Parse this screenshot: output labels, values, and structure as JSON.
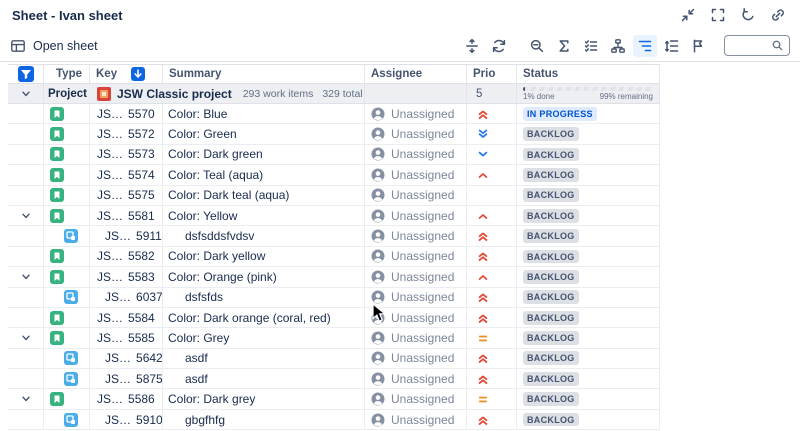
{
  "window": {
    "title": "Sheet - Ivan sheet",
    "buttons": [
      "collapse",
      "fullscreen",
      "undo",
      "link"
    ]
  },
  "toolbar": {
    "open_sheet": "Open sheet",
    "buttons": [
      "expand-rows",
      "refresh",
      "search-issues",
      "sum",
      "checklist",
      "group-by",
      "hierarchy",
      "row-height",
      "flag"
    ],
    "active_button": "hierarchy",
    "search_value": ""
  },
  "table": {
    "headers": {
      "type": "Type",
      "key": "Key",
      "summary": "Summary",
      "assignee": "Assignee",
      "prio": "Prio",
      "status": "Status"
    },
    "sort": {
      "column": "Key",
      "direction": "desc"
    },
    "project_row": {
      "label": "Project",
      "name": "JSW Classic project",
      "work_items": "293 work items",
      "total": "329 total",
      "prio": "5",
      "progress": {
        "done_pct": 1,
        "done_label": "1% done",
        "remaining_label": "99% remaining"
      }
    },
    "rows": [
      {
        "type": "story",
        "key_prefix": "JS…",
        "key_number": "5570",
        "summary": "Color: Blue",
        "assignee": "Unassigned",
        "priority": "highest",
        "status": "IN PROGRESS",
        "status_style": "inprogress",
        "expandable": false,
        "indent": false
      },
      {
        "type": "story",
        "key_prefix": "JS…",
        "key_number": "5572",
        "summary": "Color: Green",
        "assignee": "Unassigned",
        "priority": "lowest",
        "status": "BACKLOG",
        "status_style": "backlog",
        "expandable": false,
        "indent": false
      },
      {
        "type": "story",
        "key_prefix": "JS…",
        "key_number": "5573",
        "summary": "Color: Dark green",
        "assignee": "Unassigned",
        "priority": "low",
        "status": "BACKLOG",
        "status_style": "backlog",
        "expandable": false,
        "indent": false
      },
      {
        "type": "story",
        "key_prefix": "JS…",
        "key_number": "5574",
        "summary": "Color: Teal (aqua)",
        "assignee": "Unassigned",
        "priority": "high",
        "status": "BACKLOG",
        "status_style": "backlog",
        "expandable": false,
        "indent": false
      },
      {
        "type": "story",
        "key_prefix": "JS…",
        "key_number": "5575",
        "summary": "Color: Dark teal (aqua)",
        "assignee": "Unassigned",
        "priority": "none",
        "status": "BACKLOG",
        "status_style": "backlog",
        "expandable": false,
        "indent": false
      },
      {
        "type": "story",
        "key_prefix": "JS…",
        "key_number": "5581",
        "summary": "Color: Yellow",
        "assignee": "Unassigned",
        "priority": "high",
        "status": "BACKLOG",
        "status_style": "backlog",
        "expandable": true,
        "indent": false
      },
      {
        "type": "subtask",
        "key_prefix": "JS…",
        "key_number": "5911",
        "summary": "dsfsddsfvdsv",
        "assignee": "Unassigned",
        "priority": "highest",
        "status": "BACKLOG",
        "status_style": "backlog",
        "expandable": false,
        "indent": true
      },
      {
        "type": "story",
        "key_prefix": "JS…",
        "key_number": "5582",
        "summary": "Color: Dark yellow",
        "assignee": "Unassigned",
        "priority": "highest",
        "status": "BACKLOG",
        "status_style": "backlog",
        "expandable": false,
        "indent": false
      },
      {
        "type": "story",
        "key_prefix": "JS…",
        "key_number": "5583",
        "summary": "Color: Orange (pink)",
        "assignee": "Unassigned",
        "priority": "high",
        "status": "BACKLOG",
        "status_style": "backlog",
        "expandable": true,
        "indent": false
      },
      {
        "type": "subtask",
        "key_prefix": "JS…",
        "key_number": "6037",
        "summary": "dsfsfds",
        "assignee": "Unassigned",
        "priority": "highest",
        "status": "BACKLOG",
        "status_style": "backlog",
        "expandable": false,
        "indent": true
      },
      {
        "type": "story",
        "key_prefix": "JS…",
        "key_number": "5584",
        "summary": "Color: Dark orange (coral, red)",
        "assignee": "Unassigned",
        "priority": "highest",
        "status": "BACKLOG",
        "status_style": "backlog",
        "expandable": false,
        "indent": false
      },
      {
        "type": "story",
        "key_prefix": "JS…",
        "key_number": "5585",
        "summary": "Color: Grey",
        "assignee": "Unassigned",
        "priority": "medium",
        "status": "BACKLOG",
        "status_style": "backlog",
        "expandable": true,
        "indent": false
      },
      {
        "type": "subtask",
        "key_prefix": "JS…",
        "key_number": "5642",
        "summary": "asdf",
        "assignee": "Unassigned",
        "priority": "highest",
        "status": "BACKLOG",
        "status_style": "backlog",
        "expandable": false,
        "indent": true
      },
      {
        "type": "subtask",
        "key_prefix": "JS…",
        "key_number": "5875",
        "summary": "asdf",
        "assignee": "Unassigned",
        "priority": "highest",
        "status": "BACKLOG",
        "status_style": "backlog",
        "expandable": false,
        "indent": true
      },
      {
        "type": "story",
        "key_prefix": "JS…",
        "key_number": "5586",
        "summary": "Color: Dark grey",
        "assignee": "Unassigned",
        "priority": "medium",
        "status": "BACKLOG",
        "status_style": "backlog",
        "expandable": true,
        "indent": false
      },
      {
        "type": "subtask",
        "key_prefix": "JS…",
        "key_number": "5910",
        "summary": "gbgfhfg",
        "assignee": "Unassigned",
        "priority": "highest",
        "status": "BACKLOG",
        "status_style": "backlog",
        "expandable": false,
        "indent": true
      }
    ]
  },
  "colors": {
    "accent_blue": "#0C66E4",
    "active_icon_bg": "#E9F2FF",
    "story_green": "#36B37E",
    "subtask_blue": "#4BADE8",
    "priority_red": "#E34935",
    "priority_orange": "#E9942C",
    "priority_blue": "#2C7CEE",
    "inprogress_bg": "#DEEBFF",
    "inprogress_text": "#0052CC",
    "backlog_bg": "#DCDFE4",
    "backlog_text": "#44546F",
    "project_row_bg": "#EEEFF2"
  }
}
